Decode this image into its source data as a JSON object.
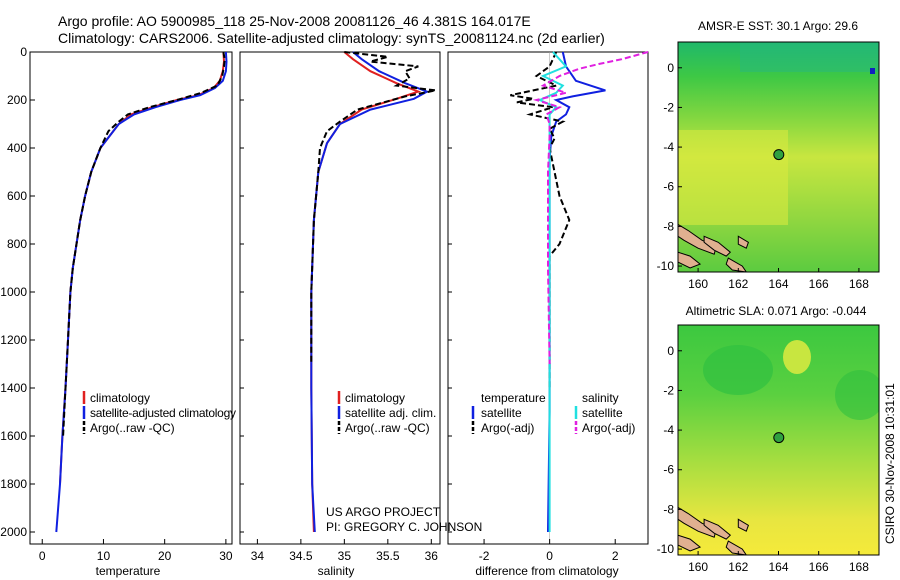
{
  "header": {
    "line1": "Argo profile: AO 5900985_118 25-Nov-2008 20081126_46 4.381S 164.017E",
    "line2": "Climatology: CARS2006. Satellite-adjusted climatology: synTS_20081124.nc (2d earlier)"
  },
  "credit": {
    "project": "US ARGO PROJECT",
    "pi": "PI: GREGORY C. JOHNSON",
    "stamp": "CSIRO 30-Nov-2008 10:31:01"
  },
  "colors": {
    "climatology": "#e02020",
    "satellite": "#1020e0",
    "argo": "#000000",
    "sat_salinity": "#20e0e0",
    "argo_salinity": "#e020e0",
    "land": "#e0b090",
    "profile_marker": "#30a040"
  },
  "chart_data": [
    {
      "type": "line",
      "id": "temperature",
      "xlabel": "temperature",
      "ylabel": "",
      "xlim": [
        -2,
        31
      ],
      "ylim": [
        2050,
        0
      ],
      "xticks": [
        0,
        10,
        20,
        30
      ],
      "yticks": [
        0,
        200,
        400,
        600,
        800,
        1000,
        1200,
        1400,
        1600,
        1800,
        2000
      ],
      "legend": [
        "climatology",
        "satellite-adjusted climatology",
        "Argo(..raw -QC)"
      ],
      "series": [
        {
          "name": "climatology",
          "points": [
            [
              29.6,
              0
            ],
            [
              29.7,
              40
            ],
            [
              29.5,
              80
            ],
            [
              29.0,
              120
            ],
            [
              28.0,
              150
            ],
            [
              25.5,
              180
            ],
            [
              22.0,
              200
            ],
            [
              18.0,
              230
            ],
            [
              14.5,
              260
            ],
            [
              12.5,
              300
            ],
            [
              11.0,
              350
            ],
            [
              9.5,
              400
            ],
            [
              8.0,
              500
            ],
            [
              7.0,
              600
            ],
            [
              6.2,
              700
            ],
            [
              5.6,
              800
            ],
            [
              5.0,
              900
            ],
            [
              4.6,
              1000
            ],
            [
              4.2,
              1200
            ],
            [
              3.8,
              1400
            ],
            [
              3.3,
              1600
            ],
            [
              2.9,
              1800
            ]
          ]
        },
        {
          "name": "satellite-adjusted climatology",
          "points": [
            [
              30.0,
              0
            ],
            [
              30.1,
              40
            ],
            [
              30.0,
              80
            ],
            [
              29.5,
              120
            ],
            [
              28.2,
              150
            ],
            [
              25.8,
              180
            ],
            [
              22.5,
              200
            ],
            [
              18.5,
              230
            ],
            [
              15.0,
              260
            ],
            [
              12.5,
              300
            ],
            [
              11.0,
              350
            ],
            [
              9.5,
              400
            ],
            [
              8.0,
              500
            ],
            [
              7.0,
              600
            ],
            [
              6.2,
              700
            ],
            [
              5.6,
              800
            ],
            [
              5.0,
              900
            ],
            [
              4.6,
              1000
            ],
            [
              4.2,
              1200
            ],
            [
              3.8,
              1400
            ],
            [
              3.3,
              1600
            ],
            [
              2.9,
              1800
            ],
            [
              2.3,
              2000
            ]
          ]
        },
        {
          "name": "Argo(..raw -QC)",
          "points": [
            [
              29.6,
              0
            ],
            [
              29.8,
              30
            ],
            [
              29.7,
              60
            ],
            [
              29.4,
              100
            ],
            [
              28.6,
              140
            ],
            [
              26.0,
              170
            ],
            [
              22.0,
              200
            ],
            [
              17.5,
              230
            ],
            [
              14.0,
              260
            ],
            [
              12.5,
              290
            ],
            [
              10.8,
              330
            ],
            [
              9.5,
              400
            ],
            [
              8.0,
              500
            ],
            [
              7.0,
              600
            ],
            [
              6.2,
              700
            ],
            [
              5.6,
              800
            ],
            [
              5.0,
              900
            ],
            [
              4.6,
              1000
            ],
            [
              4.2,
              1200
            ],
            [
              3.8,
              1400
            ],
            [
              3.4,
              1600
            ]
          ]
        }
      ]
    },
    {
      "type": "line",
      "id": "salinity",
      "xlabel": "salinity",
      "xlim": [
        33.8,
        36.1
      ],
      "ylim": [
        2050,
        0
      ],
      "xticks": [
        34,
        34.5,
        35,
        35.5,
        36
      ],
      "legend": [
        "climatology",
        "satellite adj. clim.",
        "Argo(..raw -QC)"
      ],
      "series": [
        {
          "name": "climatology",
          "points": [
            [
              35.0,
              0
            ],
            [
              35.1,
              30
            ],
            [
              35.3,
              80
            ],
            [
              35.6,
              130
            ],
            [
              35.85,
              165
            ],
            [
              35.6,
              195
            ],
            [
              35.2,
              240
            ],
            [
              34.95,
              300
            ],
            [
              34.8,
              380
            ],
            [
              34.7,
              500
            ],
            [
              34.65,
              700
            ],
            [
              34.62,
              1000
            ],
            [
              34.62,
              1400
            ],
            [
              34.63,
              1800
            ],
            [
              34.65,
              2000
            ]
          ]
        },
        {
          "name": "satellite adj. clim.",
          "points": [
            [
              35.1,
              0
            ],
            [
              35.2,
              30
            ],
            [
              35.4,
              80
            ],
            [
              35.7,
              130
            ],
            [
              35.95,
              165
            ],
            [
              35.8,
              195
            ],
            [
              35.3,
              240
            ],
            [
              34.95,
              300
            ],
            [
              34.8,
              380
            ],
            [
              34.7,
              500
            ],
            [
              34.65,
              700
            ],
            [
              34.62,
              1000
            ],
            [
              34.62,
              1400
            ],
            [
              34.63,
              1800
            ],
            [
              34.66,
              2000
            ]
          ]
        },
        {
          "name": "Argo(..raw -QC)",
          "points": [
            [
              35.0,
              0
            ],
            [
              35.5,
              20
            ],
            [
              35.3,
              40
            ],
            [
              35.85,
              60
            ],
            [
              35.7,
              80
            ],
            [
              35.75,
              110
            ],
            [
              35.6,
              140
            ],
            [
              36.05,
              160
            ],
            [
              35.7,
              185
            ],
            [
              35.45,
              210
            ],
            [
              35.15,
              240
            ],
            [
              34.95,
              290
            ],
            [
              34.8,
              330
            ],
            [
              34.72,
              400
            ],
            [
              34.7,
              500
            ],
            [
              34.65,
              700
            ],
            [
              34.62,
              1000
            ],
            [
              34.62,
              1300
            ]
          ]
        }
      ]
    },
    {
      "type": "line",
      "id": "difference",
      "xlabel": "difference from climatology",
      "xlim": [
        -3.1,
        3.0
      ],
      "ylim": [
        2050,
        0
      ],
      "xticks": [
        -2,
        0,
        2
      ],
      "legend": [
        "temperature",
        "satellite",
        "Argo(-adj)",
        "salinity",
        "satellite",
        "Argo(-adj)"
      ],
      "series": [
        {
          "name": "temperature satellite",
          "points": [
            [
              0.4,
              0
            ],
            [
              0.5,
              60
            ],
            [
              0.8,
              120
            ],
            [
              1.7,
              160
            ],
            [
              0.7,
              185
            ],
            [
              0.2,
              200
            ],
            [
              0.6,
              230
            ],
            [
              0.5,
              260
            ],
            [
              0.2,
              290
            ],
            [
              0.05,
              350
            ],
            [
              0.0,
              450
            ],
            [
              0.0,
              1000
            ],
            [
              0.0,
              1500
            ],
            [
              -0.05,
              2000
            ]
          ]
        },
        {
          "name": "temperature Argo(-adj)",
          "points": [
            [
              0.2,
              0
            ],
            [
              0.0,
              60
            ],
            [
              -0.4,
              100
            ],
            [
              0.2,
              140
            ],
            [
              -1.2,
              180
            ],
            [
              -0.5,
              195
            ],
            [
              -1.0,
              210
            ],
            [
              0.1,
              230
            ],
            [
              -0.6,
              260
            ],
            [
              0.4,
              290
            ],
            [
              0.0,
              320
            ],
            [
              0.15,
              360
            ],
            [
              0.0,
              400
            ],
            [
              0.3,
              600
            ],
            [
              0.6,
              700
            ],
            [
              0.3,
              800
            ],
            [
              0.0,
              850
            ],
            [
              0.0,
              900
            ],
            [
              0.0,
              1000
            ],
            [
              0.0,
              1400
            ]
          ]
        },
        {
          "name": "salinity satellite",
          "points": [
            [
              0.1,
              0
            ],
            [
              0.5,
              60
            ],
            [
              -0.2,
              100
            ],
            [
              0.4,
              140
            ],
            [
              0.2,
              170
            ],
            [
              -0.3,
              200
            ],
            [
              0.2,
              230
            ],
            [
              0.0,
              260
            ],
            [
              0.0,
              350
            ],
            [
              0.0,
              1000
            ],
            [
              0.0,
              1500
            ],
            [
              0.0,
              2000
            ]
          ]
        },
        {
          "name": "salinity Argo(-adj)",
          "points": [
            [
              3.0,
              0
            ],
            [
              2.2,
              30
            ],
            [
              1.5,
              50
            ],
            [
              0.9,
              70
            ],
            [
              0.3,
              100
            ],
            [
              -0.2,
              140
            ],
            [
              0.5,
              170
            ],
            [
              -0.4,
              200
            ],
            [
              0.3,
              230
            ],
            [
              -0.1,
              260
            ],
            [
              0.0,
              300
            ],
            [
              0.0,
              350
            ],
            [
              -0.05,
              500
            ],
            [
              -0.05,
              900
            ],
            [
              0.0,
              1300
            ]
          ]
        }
      ]
    },
    {
      "type": "heatmap",
      "id": "sst",
      "title": "AMSR-E SST: 30.1 Argo: 29.6",
      "xlim": [
        159,
        169
      ],
      "ylim": [
        -10.3,
        1.3
      ],
      "xticks": [
        160,
        162,
        164,
        166,
        168
      ],
      "yticks": [
        0,
        -2,
        -4,
        -6,
        -8,
        -10
      ],
      "profile": [
        164.017,
        -4.381
      ]
    },
    {
      "type": "heatmap",
      "id": "sla",
      "title": "Altimetric SLA: 0.071 Argo: -0.044",
      "xlim": [
        159,
        169
      ],
      "ylim": [
        -10.3,
        1.3
      ],
      "xticks": [
        160,
        162,
        164,
        166,
        168
      ],
      "yticks": [
        0,
        -2,
        -4,
        -6,
        -8,
        -10
      ],
      "profile": [
        164.017,
        -4.381
      ]
    }
  ]
}
